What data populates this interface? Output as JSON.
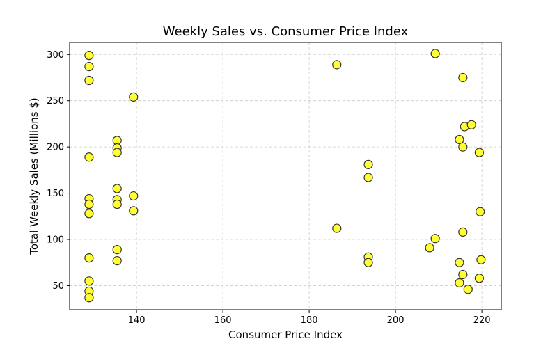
{
  "chart_data": {
    "type": "scatter",
    "title": "Weekly Sales vs. Consumer Price Index",
    "xlabel": "Consumer Price Index",
    "ylabel": "Total Weekly Sales (Millions $)",
    "xlim": [
      124.5,
      224.5
    ],
    "ylim": [
      24,
      313
    ],
    "xticks": [
      140,
      160,
      180,
      200,
      220
    ],
    "yticks": [
      50,
      100,
      150,
      200,
      250,
      300
    ],
    "grid": true,
    "marker_color": "#ffff33",
    "marker_edge_color": "#333333",
    "points": [
      {
        "x": 129.0,
        "y": 299
      },
      {
        "x": 129.0,
        "y": 287
      },
      {
        "x": 129.0,
        "y": 272
      },
      {
        "x": 129.0,
        "y": 189
      },
      {
        "x": 129.0,
        "y": 144
      },
      {
        "x": 129.0,
        "y": 138
      },
      {
        "x": 129.0,
        "y": 128
      },
      {
        "x": 129.0,
        "y": 80
      },
      {
        "x": 129.0,
        "y": 55
      },
      {
        "x": 129.0,
        "y": 44
      },
      {
        "x": 129.0,
        "y": 37
      },
      {
        "x": 135.5,
        "y": 207
      },
      {
        "x": 135.5,
        "y": 199
      },
      {
        "x": 135.5,
        "y": 194
      },
      {
        "x": 135.5,
        "y": 155
      },
      {
        "x": 135.5,
        "y": 143
      },
      {
        "x": 135.5,
        "y": 138
      },
      {
        "x": 135.5,
        "y": 89
      },
      {
        "x": 135.5,
        "y": 77
      },
      {
        "x": 139.3,
        "y": 254
      },
      {
        "x": 139.3,
        "y": 147
      },
      {
        "x": 139.3,
        "y": 131
      },
      {
        "x": 186.4,
        "y": 289
      },
      {
        "x": 186.4,
        "y": 112
      },
      {
        "x": 193.7,
        "y": 181
      },
      {
        "x": 193.7,
        "y": 167
      },
      {
        "x": 193.7,
        "y": 81
      },
      {
        "x": 193.7,
        "y": 75
      },
      {
        "x": 207.9,
        "y": 91
      },
      {
        "x": 209.2,
        "y": 301
      },
      {
        "x": 209.2,
        "y": 101
      },
      {
        "x": 214.8,
        "y": 208
      },
      {
        "x": 214.8,
        "y": 75
      },
      {
        "x": 214.8,
        "y": 53
      },
      {
        "x": 215.6,
        "y": 275
      },
      {
        "x": 215.6,
        "y": 200
      },
      {
        "x": 215.6,
        "y": 108
      },
      {
        "x": 215.6,
        "y": 62
      },
      {
        "x": 216.0,
        "y": 222
      },
      {
        "x": 216.8,
        "y": 46
      },
      {
        "x": 217.6,
        "y": 224
      },
      {
        "x": 219.4,
        "y": 194
      },
      {
        "x": 219.4,
        "y": 58
      },
      {
        "x": 219.6,
        "y": 130
      },
      {
        "x": 219.8,
        "y": 78
      }
    ]
  }
}
